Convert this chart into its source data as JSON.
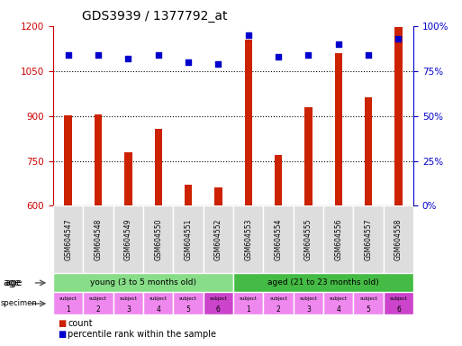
{
  "title": "GDS3939 / 1377792_at",
  "samples": [
    "GSM604547",
    "GSM604548",
    "GSM604549",
    "GSM604550",
    "GSM604551",
    "GSM604552",
    "GSM604553",
    "GSM604554",
    "GSM604555",
    "GSM604556",
    "GSM604557",
    "GSM604558"
  ],
  "count_values": [
    903,
    905,
    778,
    858,
    672,
    661,
    1155,
    770,
    930,
    1108,
    963,
    1197
  ],
  "percentile_values": [
    84,
    84,
    82,
    84,
    80,
    79,
    95,
    83,
    84,
    90,
    84,
    93
  ],
  "ylim_left": [
    600,
    1200
  ],
  "ylim_right": [
    0,
    100
  ],
  "yticks_left": [
    600,
    750,
    900,
    1050,
    1200
  ],
  "yticks_right": [
    0,
    25,
    50,
    75,
    100
  ],
  "bar_color": "#cc2200",
  "dot_color": "#0000cc",
  "age_groups": [
    {
      "label": "young (3 to 5 months old)",
      "start": 0,
      "end": 6,
      "color": "#88dd88"
    },
    {
      "label": "aged (21 to 23 months old)",
      "start": 6,
      "end": 12,
      "color": "#44bb44"
    }
  ],
  "specimen_labels_top": [
    "subject",
    "subject",
    "subject",
    "subject",
    "subject",
    "subject",
    "subject",
    "subject",
    "subject",
    "subject",
    "subject",
    "subject"
  ],
  "specimen_labels_bot": [
    "1",
    "2",
    "3",
    "4",
    "5",
    "6",
    "1",
    "2",
    "3",
    "4",
    "5",
    "6"
  ],
  "specimen_colors": [
    "#ee88ee",
    "#ee88ee",
    "#ee88ee",
    "#ee88ee",
    "#ee88ee",
    "#cc44cc",
    "#ee88ee",
    "#ee88ee",
    "#ee88ee",
    "#ee88ee",
    "#ee88ee",
    "#cc44cc"
  ],
  "grid_color": "#aaaaaa",
  "background_color": "#ffffff",
  "tick_label_color_left": "#cc0000",
  "tick_label_color_right": "#0000cc",
  "bar_width": 0.25,
  "dot_size": 20,
  "sample_bg_color": "#cccccc",
  "sample_cell_color": "#dddddd"
}
